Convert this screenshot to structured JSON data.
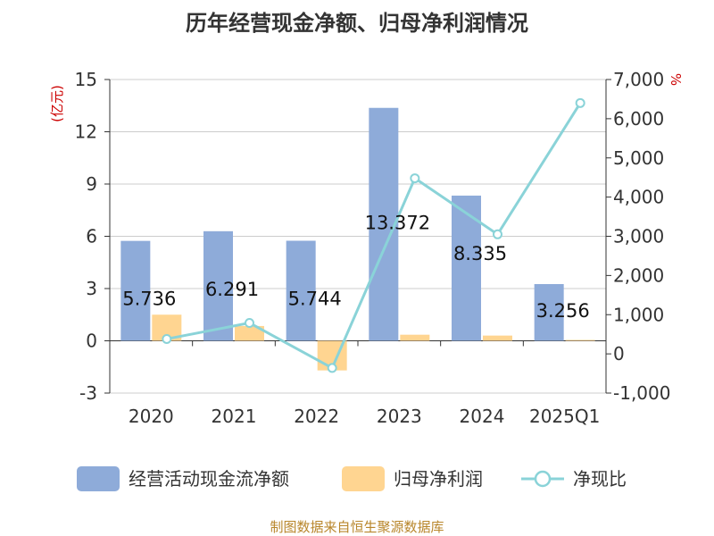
{
  "chart_data": {
    "type": "bar",
    "title": "历年经营现金净额、归母净利润情况",
    "categories": [
      "2020",
      "2021",
      "2022",
      "2023",
      "2024",
      "2025Q1"
    ],
    "series": [
      {
        "name": "经营活动现金流净额",
        "type": "bar",
        "axis": "left",
        "color": "#8eabd9",
        "values": [
          5.736,
          6.291,
          5.744,
          13.372,
          8.335,
          3.256
        ],
        "labels": [
          "5.736",
          "6.291",
          "5.744",
          "13.372",
          "8.335",
          "3.256"
        ]
      },
      {
        "name": "归母净利润",
        "type": "bar",
        "axis": "left",
        "color": "#ffd591",
        "values": [
          1.5,
          0.85,
          -1.7,
          0.35,
          0.3,
          0.05
        ]
      },
      {
        "name": "净现比",
        "type": "line",
        "axis": "right",
        "color": "#8ad3d8",
        "values": [
          380,
          790,
          -360,
          4480,
          3050,
          6400
        ]
      }
    ],
    "y_left": {
      "label": "(亿元)",
      "ylim": [
        -3,
        15
      ],
      "ticks": [
        -3,
        0,
        3,
        6,
        9,
        12,
        15
      ]
    },
    "y_right": {
      "label": "%",
      "ylim": [
        -1000,
        7000
      ],
      "ticks": [
        -1000,
        0,
        1000,
        2000,
        3000,
        4000,
        5000,
        6000,
        7000
      ],
      "tick_labels": [
        "-1,000",
        "0",
        "1,000",
        "2,000",
        "3,000",
        "4,000",
        "5,000",
        "6,000",
        "7,000"
      ]
    },
    "grid": true,
    "legend_position": "bottom"
  },
  "source": "制图数据来自恒生聚源数据库"
}
